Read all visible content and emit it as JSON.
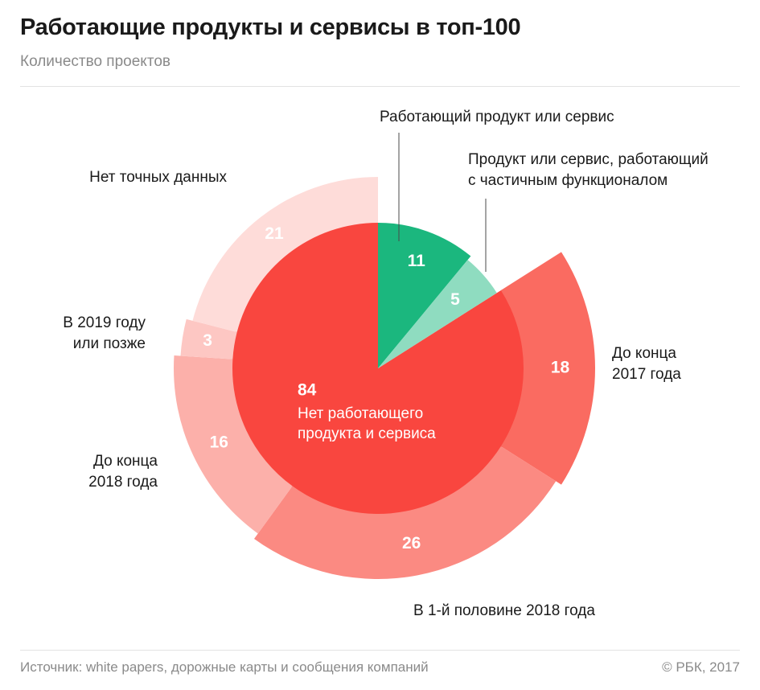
{
  "header": {
    "title": "Работающие продукты и сервисы в топ-100",
    "subtitle": "Количество проектов"
  },
  "footer": {
    "source": "Источник: white papers, дорожные карты и сообщения компаний",
    "copyright": "© РБК, 2017"
  },
  "chart_data": {
    "type": "pie",
    "title": "Работающие продукты и сервисы в топ-100",
    "subtitle": "Количество проектов",
    "inner": [
      {
        "name": "Работающий продукт или сервис",
        "value": 11,
        "color": "#1bb77e"
      },
      {
        "name": "Продукт или сервис, работающий с частичным функционалом",
        "value": 5,
        "color": "#8fdcc0"
      },
      {
        "name": "Нет работающего продукта и сервиса",
        "value": 84,
        "color": "#f9463f"
      }
    ],
    "outer_parent": "Нет работающего продукта и сервиса",
    "outer": [
      {
        "name": "До конца 2017 года",
        "value": 18,
        "color": "#fa6b61"
      },
      {
        "name": "В 1-й половине 2018 года",
        "value": 26,
        "color": "#fb8a82"
      },
      {
        "name": "До конца 2018 года",
        "value": 16,
        "color": "#fcb0aa"
      },
      {
        "name": "В 2019 году или позже",
        "value": 3,
        "color": "#fdc7c3"
      },
      {
        "name": "Нет точных данных",
        "value": 21,
        "color": "#fedcd9"
      }
    ],
    "labels": {
      "working": [
        "Работающий продукт или сервис"
      ],
      "partial": [
        "Продукт или сервис, работающий",
        "с частичным функционалом"
      ],
      "center": [
        "Нет работающего",
        "продукта и сервиса"
      ],
      "o2017": [
        "До конца",
        "2017 года"
      ],
      "oh1": [
        "В 1-й половине 2018 года"
      ],
      "o2018": [
        "До конца",
        "2018 года"
      ],
      "o2019": [
        "В 2019 году",
        "или позже"
      ],
      "ona": [
        "Нет точных данных"
      ]
    }
  }
}
